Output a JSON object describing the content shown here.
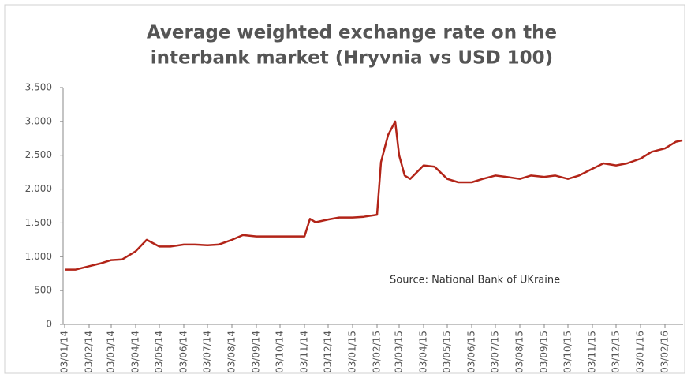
{
  "chart_data": {
    "type": "line",
    "title": [
      "Average weighted exchange rate on the",
      "interbank market (Hryvnia vs USD 100)"
    ],
    "annotation": "Source: National Bank of UKraine",
    "x": [
      "03/01/14",
      "17/01/14",
      "03/02/14",
      "17/02/14",
      "03/03/14",
      "17/03/14",
      "03/04/14",
      "17/04/14",
      "03/05/14",
      "17/05/14",
      "03/06/14",
      "17/06/14",
      "03/07/14",
      "17/07/14",
      "03/08/14",
      "17/08/14",
      "03/09/14",
      "17/09/14",
      "03/10/14",
      "17/10/14",
      "03/11/14",
      "10/11/14",
      "17/11/14",
      "03/12/14",
      "17/12/14",
      "03/01/15",
      "17/01/15",
      "03/02/15",
      "08/02/15",
      "17/02/15",
      "26/02/15",
      "03/03/15",
      "10/03/15",
      "17/03/15",
      "03/04/15",
      "17/04/15",
      "03/05/15",
      "17/05/15",
      "03/06/15",
      "17/06/15",
      "03/07/15",
      "17/07/15",
      "03/08/15",
      "17/08/15",
      "03/09/15",
      "17/09/15",
      "03/10/15",
      "17/10/15",
      "03/11/15",
      "17/11/15",
      "03/12/15",
      "17/12/15",
      "03/01/16",
      "17/01/16",
      "03/02/16",
      "17/02/16",
      "25/02/16"
    ],
    "series": [
      {
        "name": "Hryvnia vs USD 100",
        "color": "#b22418",
        "values": [
          810,
          810,
          860,
          900,
          950,
          960,
          1080,
          1250,
          1150,
          1150,
          1180,
          1180,
          1170,
          1180,
          1250,
          1320,
          1300,
          1300,
          1300,
          1300,
          1300,
          1560,
          1510,
          1550,
          1580,
          1580,
          1590,
          1620,
          2400,
          2800,
          3000,
          2500,
          2200,
          2150,
          2350,
          2330,
          2150,
          2100,
          2100,
          2150,
          2200,
          2180,
          2150,
          2200,
          2180,
          2200,
          2150,
          2200,
          2300,
          2380,
          2350,
          2380,
          2450,
          2550,
          2600,
          2700,
          2720
        ]
      }
    ],
    "xlim": [
      "03/01/14",
      "25/02/16"
    ],
    "xticks": [
      "03/01/14",
      "03/02/14",
      "03/03/14",
      "03/04/14",
      "03/05/14",
      "03/06/14",
      "03/07/14",
      "03/08/14",
      "03/09/14",
      "03/10/14",
      "03/11/14",
      "03/12/14",
      "03/01/15",
      "03/02/15",
      "03/03/15",
      "03/04/15",
      "03/05/15",
      "03/06/15",
      "03/07/15",
      "03/08/15",
      "03/09/15",
      "03/10/15",
      "03/11/15",
      "03/12/15",
      "03/01/16",
      "03/02/16"
    ],
    "ylim": [
      0,
      3500
    ],
    "yticks": [
      0,
      500,
      {
        "value": 1000,
        "label": "1.000"
      },
      {
        "value": 1500,
        "label": "1.500"
      },
      {
        "value": 2000,
        "label": "2.000"
      },
      {
        "value": 2500,
        "label": "2.500"
      },
      {
        "value": 3000,
        "label": "3.000"
      },
      {
        "value": 3500,
        "label": "3.500"
      }
    ],
    "grid": false
  }
}
